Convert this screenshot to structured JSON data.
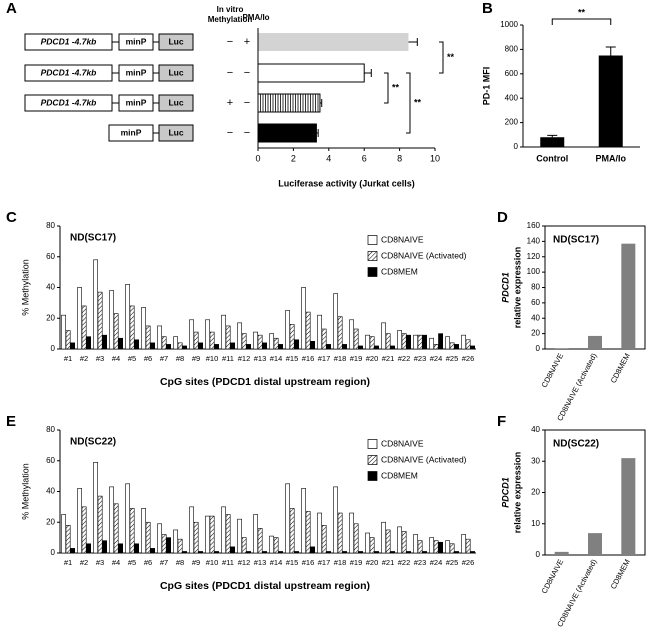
{
  "chart_data": [
    {
      "type": "hbar_constructs",
      "panel_label": "A",
      "methylation_header": [
        "In vitro",
        "Methylation"
      ],
      "pma_header": "PMA/Io",
      "rows": [
        {
          "elements": [
            "PDCD1 -4.7kb",
            "minP",
            "Luc"
          ],
          "methylation": "−",
          "pma": "+"
        },
        {
          "elements": [
            "PDCD1 -4.7kb",
            "minP",
            "Luc"
          ],
          "methylation": "−",
          "pma": "−"
        },
        {
          "elements": [
            "PDCD1 -4.7kb",
            "minP",
            "Luc"
          ],
          "methylation": "+",
          "pma": "−"
        },
        {
          "elements": [
            "minP",
            "Luc"
          ],
          "methylation": "−",
          "pma": "−"
        }
      ],
      "values": [
        8.5,
        6.0,
        3.5,
        3.3
      ],
      "errors": [
        0.5,
        0.4,
        0.1,
        0.1
      ],
      "colors": [
        "#d3d3d3",
        "#ffffff",
        "#ffffff",
        "#000000"
      ],
      "hatches": [
        null,
        null,
        "vertical",
        null
      ],
      "xlim": [
        0,
        10
      ],
      "xticks": [
        0,
        2,
        4,
        6,
        8,
        10
      ],
      "xlabel": "Luciferase activity (Jurkat cells)",
      "significance": [
        "**",
        "**",
        "**"
      ]
    },
    {
      "type": "bar",
      "panel_label": "B",
      "categories": [
        "Control",
        "PMA/Io"
      ],
      "values": [
        80,
        750
      ],
      "errors": [
        15,
        70
      ],
      "color": "#000000",
      "ylim": [
        0,
        1000
      ],
      "yticks": [
        0,
        200,
        400,
        600,
        800,
        1000
      ],
      "ylabel": [
        "PD-1 MFI"
      ],
      "significance": "**"
    },
    {
      "type": "grouped_bar",
      "panel_label": "C",
      "annotation": "ND(SC17)",
      "categories": [
        "#1",
        "#2",
        "#3",
        "#4",
        "#5",
        "#6",
        "#7",
        "#8",
        "#9",
        "#10",
        "#11",
        "#12",
        "#13",
        "#14",
        "#15",
        "#16",
        "#17",
        "#18",
        "#19",
        "#20",
        "#21",
        "#22",
        "#23",
        "#24",
        "#25",
        "#26"
      ],
      "series": [
        {
          "name": "CD8NAIVE",
          "color": "#ffffff",
          "hatch": null,
          "values": [
            22,
            40,
            58,
            38,
            42,
            27,
            15,
            8,
            19,
            19,
            22,
            17,
            11,
            10,
            25,
            40,
            22,
            36,
            19,
            9,
            17,
            12,
            9,
            7,
            8,
            9
          ]
        },
        {
          "name": "CD8NAIVE (Activated)",
          "color": "#ffffff",
          "hatch": "diagonal",
          "values": [
            12,
            28,
            37,
            23,
            28,
            15,
            8,
            4,
            11,
            11,
            15,
            10,
            9,
            7,
            16,
            24,
            13,
            21,
            13,
            8,
            10,
            10,
            9,
            3,
            4,
            6
          ]
        },
        {
          "name": "CD8MEM",
          "color": "#000000",
          "hatch": null,
          "values": [
            4,
            8,
            9,
            7,
            6,
            4,
            3,
            2,
            4,
            3,
            4,
            3,
            4,
            3,
            6,
            5,
            3,
            3,
            2,
            2,
            2,
            9,
            9,
            10,
            3,
            2
          ]
        }
      ],
      "ylim": [
        0,
        80
      ],
      "yticks": [
        0,
        20,
        40,
        60,
        80
      ],
      "ylabel": "% Methylation",
      "xlabel": "CpG sites  (PDCD1 distal upstream region)"
    },
    {
      "type": "bar",
      "panel_label": "D",
      "annotation": "ND(SC17)",
      "categories": [
        "CD8NAIVE",
        "CD8NAIVE (Activated)",
        "CD8MEM"
      ],
      "values": [
        1,
        17,
        137
      ],
      "color": "#808080",
      "ylim": [
        0,
        160
      ],
      "yticks": [
        0,
        20,
        40,
        60,
        80,
        100,
        120,
        140,
        160
      ],
      "ylabel": [
        "PDCD1",
        "relative expression"
      ]
    },
    {
      "type": "grouped_bar",
      "panel_label": "E",
      "annotation": "ND(SC22)",
      "categories": [
        "#1",
        "#2",
        "#3",
        "#4",
        "#5",
        "#6",
        "#7",
        "#8",
        "#9",
        "#10",
        "#11",
        "#12",
        "#13",
        "#14",
        "#15",
        "#16",
        "#17",
        "#18",
        "#19",
        "#20",
        "#21",
        "#22",
        "#23",
        "#24",
        "#25",
        "#26"
      ],
      "series": [
        {
          "name": "CD8NAIVE",
          "color": "#ffffff",
          "hatch": null,
          "values": [
            25,
            42,
            59,
            43,
            45,
            29,
            19,
            15,
            30,
            24,
            30,
            22,
            25,
            11,
            45,
            42,
            26,
            43,
            26,
            13,
            20,
            17,
            12,
            10,
            8,
            12
          ]
        },
        {
          "name": "CD8NAIVE (Activated)",
          "color": "#ffffff",
          "hatch": "diagonal",
          "values": [
            18,
            30,
            37,
            32,
            29,
            20,
            12,
            9,
            20,
            24,
            25,
            10,
            16,
            10,
            29,
            27,
            18,
            26,
            19,
            10,
            15,
            14,
            8,
            8,
            6,
            9
          ]
        },
        {
          "name": "CD8MEM",
          "color": "#000000",
          "hatch": null,
          "values": [
            3,
            6,
            8,
            6,
            6,
            3,
            10,
            1,
            1,
            1,
            4,
            1,
            1,
            1,
            1,
            4,
            1,
            1,
            1,
            1,
            1,
            1,
            1,
            7,
            1,
            1
          ]
        }
      ],
      "ylim": [
        0,
        80
      ],
      "yticks": [
        0,
        20,
        40,
        60,
        80
      ],
      "ylabel": "% Methylation",
      "xlabel": "CpG sites  (PDCD1 distal upstream region)"
    },
    {
      "type": "bar",
      "panel_label": "F",
      "annotation": "ND(SC22)",
      "categories": [
        "CD8NAIVE",
        "CD8NAIVE (Activated)",
        "CD8MEM"
      ],
      "values": [
        1,
        7,
        31
      ],
      "color": "#808080",
      "ylim": [
        0,
        40
      ],
      "yticks": [
        0,
        10,
        20,
        30,
        40
      ],
      "ylabel": [
        "PDCD1",
        "relative expression"
      ]
    }
  ]
}
